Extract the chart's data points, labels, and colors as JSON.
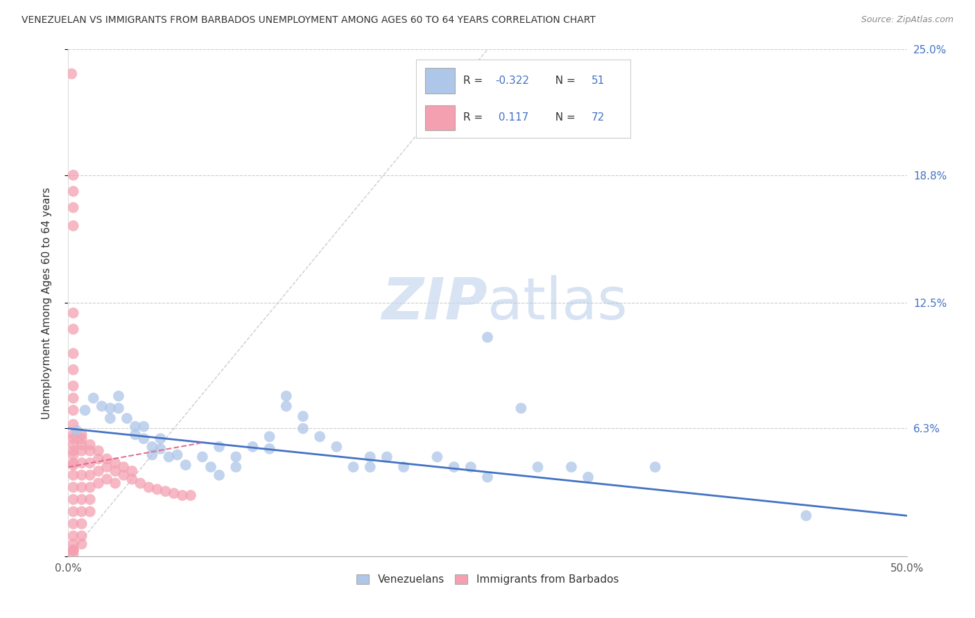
{
  "title": "VENEZUELAN VS IMMIGRANTS FROM BARBADOS UNEMPLOYMENT AMONG AGES 60 TO 64 YEARS CORRELATION CHART",
  "source": "Source: ZipAtlas.com",
  "ylabel": "Unemployment Among Ages 60 to 64 years",
  "xlim": [
    0.0,
    0.5
  ],
  "ylim": [
    0.0,
    0.25
  ],
  "xtick_positions": [
    0.0,
    0.1,
    0.2,
    0.3,
    0.4,
    0.5
  ],
  "xticklabels": [
    "0.0%",
    "",
    "",
    "",
    "",
    "50.0%"
  ],
  "ytick_positions": [
    0.0,
    0.063,
    0.125,
    0.188,
    0.25
  ],
  "ytick_labels_right": [
    "",
    "6.3%",
    "12.5%",
    "18.8%",
    "25.0%"
  ],
  "grid_color": "#cccccc",
  "background_color": "#ffffff",
  "venezuelan_color": "#aec6e8",
  "barbados_color": "#f4a0b0",
  "venezuelan_line_color": "#4472c4",
  "barbados_line_color": "#e07090",
  "venezuelan_points": [
    [
      0.005,
      0.062
    ],
    [
      0.01,
      0.072
    ],
    [
      0.015,
      0.078
    ],
    [
      0.02,
      0.074
    ],
    [
      0.025,
      0.073
    ],
    [
      0.025,
      0.068
    ],
    [
      0.03,
      0.079
    ],
    [
      0.03,
      0.073
    ],
    [
      0.035,
      0.068
    ],
    [
      0.04,
      0.064
    ],
    [
      0.04,
      0.06
    ],
    [
      0.045,
      0.064
    ],
    [
      0.045,
      0.058
    ],
    [
      0.05,
      0.054
    ],
    [
      0.05,
      0.05
    ],
    [
      0.055,
      0.058
    ],
    [
      0.055,
      0.053
    ],
    [
      0.06,
      0.049
    ],
    [
      0.065,
      0.05
    ],
    [
      0.07,
      0.045
    ],
    [
      0.08,
      0.049
    ],
    [
      0.085,
      0.044
    ],
    [
      0.09,
      0.054
    ],
    [
      0.09,
      0.04
    ],
    [
      0.1,
      0.049
    ],
    [
      0.1,
      0.044
    ],
    [
      0.11,
      0.054
    ],
    [
      0.12,
      0.059
    ],
    [
      0.12,
      0.053
    ],
    [
      0.13,
      0.079
    ],
    [
      0.13,
      0.074
    ],
    [
      0.14,
      0.069
    ],
    [
      0.14,
      0.063
    ],
    [
      0.15,
      0.059
    ],
    [
      0.16,
      0.054
    ],
    [
      0.17,
      0.044
    ],
    [
      0.18,
      0.049
    ],
    [
      0.18,
      0.044
    ],
    [
      0.19,
      0.049
    ],
    [
      0.2,
      0.044
    ],
    [
      0.22,
      0.049
    ],
    [
      0.23,
      0.044
    ],
    [
      0.24,
      0.044
    ],
    [
      0.25,
      0.039
    ],
    [
      0.27,
      0.073
    ],
    [
      0.28,
      0.044
    ],
    [
      0.3,
      0.044
    ],
    [
      0.31,
      0.039
    ],
    [
      0.35,
      0.044
    ],
    [
      0.44,
      0.02
    ],
    [
      0.25,
      0.108
    ]
  ],
  "barbados_points": [
    [
      0.002,
      0.238
    ],
    [
      0.003,
      0.188
    ],
    [
      0.003,
      0.18
    ],
    [
      0.003,
      0.172
    ],
    [
      0.003,
      0.163
    ],
    [
      0.003,
      0.12
    ],
    [
      0.003,
      0.112
    ],
    [
      0.003,
      0.1
    ],
    [
      0.003,
      0.092
    ],
    [
      0.003,
      0.084
    ],
    [
      0.003,
      0.078
    ],
    [
      0.003,
      0.072
    ],
    [
      0.003,
      0.065
    ],
    [
      0.003,
      0.058
    ],
    [
      0.003,
      0.052
    ],
    [
      0.003,
      0.046
    ],
    [
      0.003,
      0.04
    ],
    [
      0.003,
      0.034
    ],
    [
      0.003,
      0.028
    ],
    [
      0.003,
      0.022
    ],
    [
      0.003,
      0.016
    ],
    [
      0.003,
      0.01
    ],
    [
      0.003,
      0.006
    ],
    [
      0.003,
      0.001
    ],
    [
      0.008,
      0.058
    ],
    [
      0.008,
      0.052
    ],
    [
      0.008,
      0.046
    ],
    [
      0.008,
      0.04
    ],
    [
      0.008,
      0.034
    ],
    [
      0.008,
      0.028
    ],
    [
      0.008,
      0.022
    ],
    [
      0.008,
      0.016
    ],
    [
      0.008,
      0.01
    ],
    [
      0.008,
      0.006
    ],
    [
      0.013,
      0.052
    ],
    [
      0.013,
      0.046
    ],
    [
      0.013,
      0.04
    ],
    [
      0.013,
      0.034
    ],
    [
      0.013,
      0.028
    ],
    [
      0.013,
      0.022
    ],
    [
      0.018,
      0.048
    ],
    [
      0.018,
      0.042
    ],
    [
      0.018,
      0.036
    ],
    [
      0.023,
      0.044
    ],
    [
      0.023,
      0.038
    ],
    [
      0.028,
      0.042
    ],
    [
      0.028,
      0.036
    ],
    [
      0.033,
      0.04
    ],
    [
      0.038,
      0.038
    ],
    [
      0.043,
      0.036
    ],
    [
      0.048,
      0.034
    ],
    [
      0.053,
      0.033
    ],
    [
      0.058,
      0.032
    ],
    [
      0.063,
      0.031
    ],
    [
      0.068,
      0.03
    ],
    [
      0.073,
      0.03
    ],
    [
      0.003,
      0.003
    ],
    [
      0.003,
      0.003
    ],
    [
      0.003,
      0.003
    ],
    [
      0.003,
      0.045
    ],
    [
      0.003,
      0.05
    ],
    [
      0.003,
      0.055
    ],
    [
      0.003,
      0.06
    ],
    [
      0.008,
      0.06
    ],
    [
      0.008,
      0.055
    ],
    [
      0.013,
      0.055
    ],
    [
      0.018,
      0.052
    ],
    [
      0.023,
      0.048
    ],
    [
      0.028,
      0.046
    ],
    [
      0.033,
      0.044
    ],
    [
      0.038,
      0.042
    ]
  ],
  "venezuelan_trend_x": [
    0.0,
    0.5
  ],
  "venezuelan_trend_y": [
    0.063,
    0.02
  ],
  "barbados_trend_x": [
    0.0,
    0.08
  ],
  "barbados_trend_y": [
    0.044,
    0.056
  ],
  "diag_line_x": [
    0.0,
    0.25
  ],
  "diag_line_y": [
    0.0,
    0.25
  ]
}
